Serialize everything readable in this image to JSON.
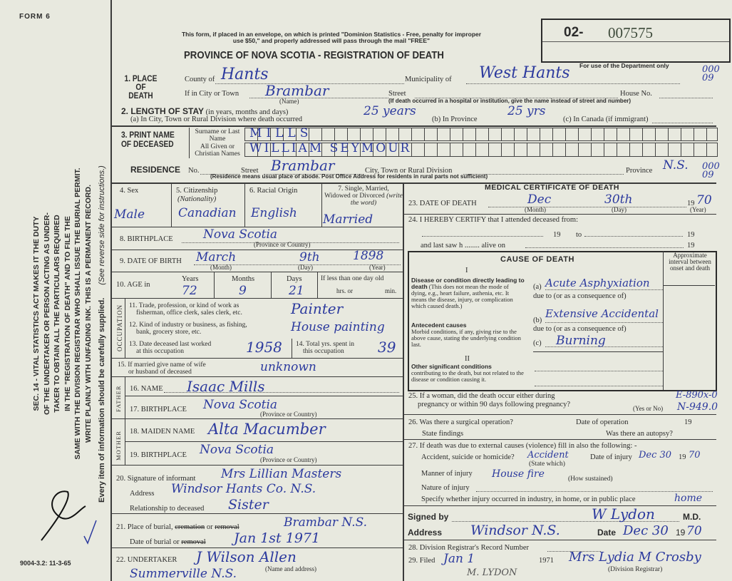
{
  "form_number": "FORM 6",
  "print_code": "9004-3.2: 11-3-65",
  "side_notice": [
    "SEC. 14 - VITAL STATISTICS ACT MAKES IT THE DUTY",
    "OF THE UNDERTAKER OR PERSON ACTING AS UNDER-",
    "TAKER TO OBTAIN ALL THE PARTICULARS REQUIRED",
    "IN THE \"REGISTRATION OF DEATH\" AND TO FILE THE",
    "SAME WITH THE DIVISION REGISTRAR WHO SHALL ISSUE THE BURIAL PERMIT.",
    "WRITE PLAINLY WITH UNFADING INK. THIS IS A PERMANENT RECORD."
  ],
  "side_footer": "Every item of information should be carefully supplied.",
  "side_instructions": "(See reverse side for instructions.)",
  "mail_notice_1": "This form, if placed in an envelope, on which is printed \"Dominion Statistics - Free, penalty for improper",
  "mail_notice_2": "use $50,\" and properly addressed will pass through the mail \"FREE\"",
  "title": "PROVINCE OF NOVA SCOTIA - REGISTRATION OF DEATH",
  "registration_number": {
    "prefix": "02-",
    "number": "007575"
  },
  "dept_use": "For use of the Department only",
  "dept_codes": [
    "000 09",
    "000 09"
  ],
  "place_of_death": {
    "label": "1. PLACE OF DEATH",
    "county_label": "County of",
    "county": "Hants",
    "municipality_label": "Municipality of",
    "municipality": "West Hants",
    "city_label": "If in City or Town",
    "city": "Brambar",
    "name_note": "(Name)",
    "street_label": "Street",
    "house_label": "House No.",
    "hospital_note": "(If death occurred in a hospital or institution, give the name instead of street and number)"
  },
  "length_of_stay": {
    "label": "2. LENGTH OF STAY",
    "label_note": "(in years, months and days)",
    "a_label": "(a) In City, Town or Rural Division where death occurred",
    "a_value": "25 years",
    "b_label": "(b) In Province",
    "b_value": "25 yrs",
    "c_label": "(c) In Canada (if immigrant)"
  },
  "name": {
    "label": "3. PRINT NAME OF DECEASED",
    "surname_label": "Surname or Last Name",
    "surname": "MILLS",
    "given_label": "All Given or Christian Names",
    "given": "WILLIAM SEYMOUR"
  },
  "residence": {
    "label": "RESIDENCE",
    "no_label": "No.",
    "street_label": "Street",
    "street": "Brambar",
    "city_label": "City, Town or Rural Division",
    "province_label": "Province",
    "province": "N.S.",
    "note": "(Residence means usual place of abode. Post Office Address for residents in rural parts not sufficient)"
  },
  "personal": {
    "sex_label": "4. Sex",
    "sex": "Male",
    "citizenship_label": "5. Citizenship",
    "citizenship_note": "(Nationality)",
    "citizenship": "Canadian",
    "origin_label": "6. Racial Origin",
    "origin": "English",
    "marital_label": "7. Single, Married, Widowed or Divorced",
    "marital_note": "(write the word)",
    "marital": "Married",
    "birthplace_label": "8. BIRTHPLACE",
    "birthplace": "Nova Scotia",
    "birthplace_note": "(Province or Country)",
    "dob_label": "9. DATE OF BIRTH",
    "dob_month": "March",
    "dob_day": "9th",
    "dob_year": "1898",
    "month_note": "(Month)",
    "day_note": "(Day)",
    "year_note": "(Year)",
    "age_label": "10. AGE in",
    "years_label": "Years",
    "years": "72",
    "months_label": "Months",
    "months": "9",
    "days_label": "Days",
    "days": "21",
    "lt_day_label": "If less than one day old",
    "hrs_label": "hrs. or",
    "min_label": "min."
  },
  "occupation": {
    "side_label": "OCCUPATION",
    "trade_label_1": "11. Trade, profession, or kind of work as",
    "trade_label_2": "fisherman, office clerk, sales clerk, etc.",
    "trade": "Painter",
    "industry_label_1": "12. Kind of industry or business, as fishing,",
    "industry_label_2": "bank, grocery store, etc.",
    "industry": "House painting",
    "last_worked_label_1": "13. Date deceased last worked",
    "last_worked_label_2": "at this occupation",
    "last_worked": "1958",
    "total_years_label_1": "14. Total yrs. spent in",
    "total_years_label_2": "this occupation",
    "total_years": "39"
  },
  "spouse": {
    "label_1": "15. If married give name of wife",
    "label_2": "or husband of deceased",
    "value": "unknown"
  },
  "father": {
    "side_label": "FATHER",
    "name_label": "16. NAME",
    "name": "Isaac Mills",
    "birthplace_label": "17. BIRTHPLACE",
    "birthplace": "Nova Scotia",
    "note": "(Province or Country)"
  },
  "mother": {
    "side_label": "MOTHER",
    "maiden_label": "18. MAIDEN NAME",
    "maiden": "Alta Macumber",
    "birthplace_label": "19. BIRTHPLACE",
    "birthplace": "Nova Scotia",
    "note": "(Province or Country)"
  },
  "informant": {
    "signature_label": "20. Signature of informant",
    "signature": "Mrs Lillian Masters",
    "address_label": "Address",
    "address": "Windsor Hants Co. N.S.",
    "relationship_label": "Relationship to deceased",
    "relationship": "Sister"
  },
  "burial": {
    "place_label_1": "21. Place of burial,",
    "place_label_struck": "cremation",
    "place_label_2": "or",
    "place_label_struck2": "removal",
    "place": "Brambar N.S.",
    "date_label": "Date of burial or",
    "date_label_struck": "removal",
    "date": "Jan 1st 1971"
  },
  "undertaker": {
    "label": "22. UNDERTAKER",
    "name": "J Wilson Allen",
    "address": "Summerville N.S.",
    "note": "(Name and address)"
  },
  "medical": {
    "title": "MEDICAL CERTIFICATE OF DEATH",
    "dod_label": "23. DATE OF DEATH",
    "dod_month": "Dec",
    "dod_day": "30th",
    "dod_year_prefix": "19",
    "dod_year": "70",
    "month_note": "(Month)",
    "day_note": "(Day)",
    "year_note": "(Year)",
    "certify_label": "24. I HEREBY CERTIFY that I attended deceased from:",
    "nineteen": "19",
    "to": "to",
    "last_saw": "and last saw h ........ alive on",
    "cause_title": "CAUSE OF DEATH",
    "part_1": "I",
    "part_2": "II",
    "interval_label": "Approximate interval between onset and death",
    "direct_heading": "Disease or condition directly leading to death",
    "direct_text": "(This does not mean the mode of dying, e.g., heart failure, asthenia, etc. It means the disease, injury, or complication which caused death.)",
    "antecedent_heading": "Antecedent causes",
    "antecedent_text": "Morbid conditions, if any, giving rise to the above cause, stating the underlying condition last.",
    "other_heading": "Other significant conditions",
    "other_text": "contributing to the death, but not related to the disease or condition causing it.",
    "a_label": "(a)",
    "a": "Acute Asphyxiation",
    "due_to": "due to (or as a consequence of)",
    "b_label": "(b)",
    "b": "Extensive Accidental",
    "c_label": "(c)",
    "c": "Burning"
  },
  "pregnancy": {
    "label_1": "25. If a woman, did the death occur either during",
    "label_2": "pregnancy or within 90 days following pregnancy?",
    "note": "(Yes or No)",
    "code_1": "E-890x-0",
    "code_2": "N-949.0"
  },
  "surgery": {
    "label": "26. Was there a surgical operation?",
    "date_label": "Date of operation",
    "nineteen": "19",
    "findings_label": "State findings",
    "autopsy_label": "Was there an autopsy?"
  },
  "external": {
    "label": "27. If death was due to external causes (violence) fill in also the following: -",
    "type_label": "Accident, suicide or homicide?",
    "type": "Accident",
    "type_note": "(State which)",
    "injury_date_label": "Date of injury",
    "injury_date": "Dec 30",
    "nineteen": "19",
    "injury_year": "70",
    "manner_label": "Manner of injury",
    "manner": "House fire",
    "manner_note": "(How sustained)",
    "nature_label": "Nature of injury",
    "place_label": "Specify whether injury occurred in industry, in home, or in public place",
    "place": "home"
  },
  "signature": {
    "signed_label": "Signed by",
    "signed": "W Lydon",
    "md": "M.D.",
    "address_label": "Address",
    "address": "Windsor N.S.",
    "date_label": "Date",
    "date": "Dec 30",
    "year_prefix": "19",
    "year": "70"
  },
  "registrar": {
    "record_label": "28. Division Registrar's Record Number",
    "filed_label": "29. Filed",
    "filed": "Jan 1",
    "filed_year": "1971",
    "registrar": "Mrs Lydia M Crosby",
    "registrar_note": "(Division Registrar)",
    "stamp": "M. LYDON"
  }
}
